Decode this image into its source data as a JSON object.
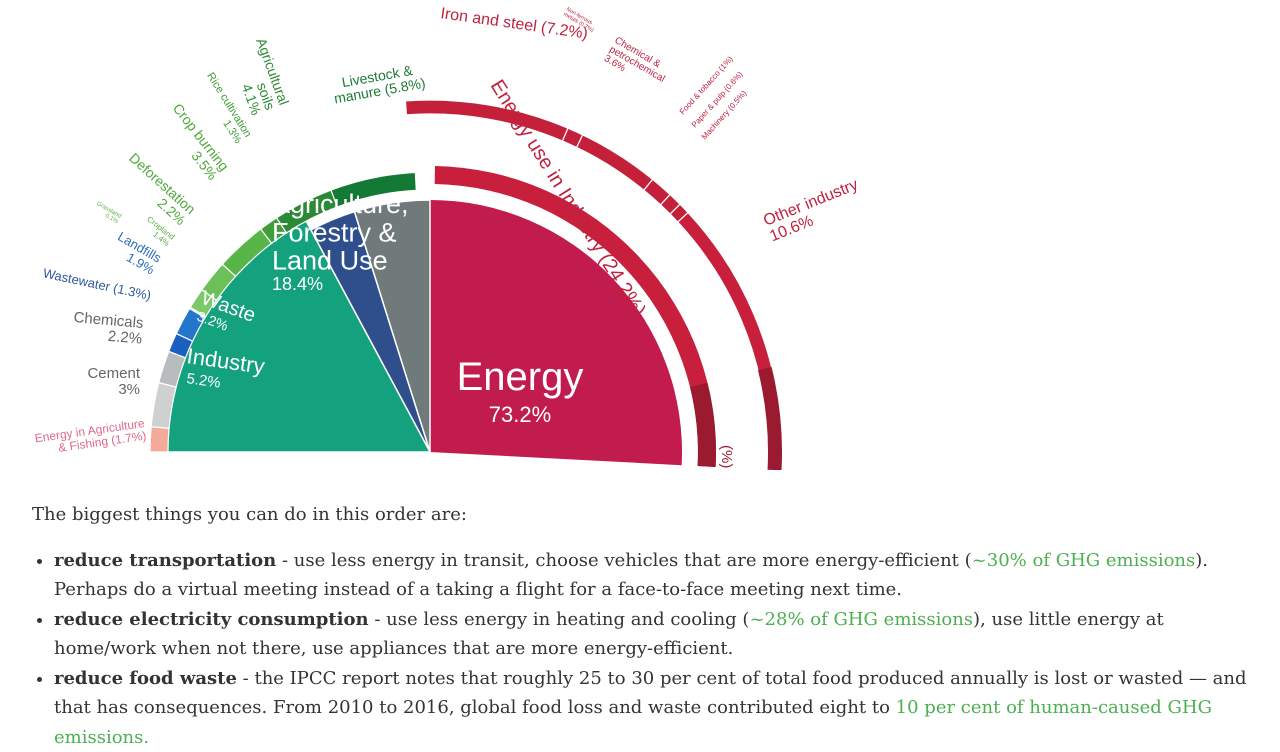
{
  "chart_data": {
    "type": "pie",
    "inner": [
      {
        "label": "Energy",
        "value": 73.2,
        "display": "73.2%",
        "color": "#c21c4e"
      },
      {
        "label": "Industry",
        "value": 5.2,
        "display": "5.2%",
        "color": "#717a7a"
      },
      {
        "label": "Waste",
        "value": 3.2,
        "display": "3.2%",
        "color": "#2e4f8c"
      },
      {
        "label": "Agriculture, Forestry & Land Use",
        "lines": [
          "Agriculture,",
          "Forestry &",
          "Land Use"
        ],
        "value": 18.4,
        "display": "18.4%",
        "color": "#14a17e"
      }
    ],
    "outer": [
      {
        "label": "Energy in Agriculture & Fishing",
        "value": 1.7,
        "display": "(1.7%)",
        "color": "#f3aa9a",
        "text": "#e06a88"
      },
      {
        "label": "Cement",
        "value": 3,
        "display": "3%",
        "color": "#cfd1d1",
        "text": "#666666"
      },
      {
        "label": "Chemicals",
        "value": 2.2,
        "display": "2.2%",
        "color": "#b9bcbc",
        "text": "#666666"
      },
      {
        "label": "Wastewater",
        "value": 1.3,
        "display": "(1.3%)",
        "color": "#1b5fbf",
        "text": "#2d5aa0"
      },
      {
        "label": "Landfills",
        "value": 1.9,
        "display": "1.9%",
        "color": "#2277cc",
        "text": "#2d6fc0"
      },
      {
        "label": "Grassland",
        "value": 0.1,
        "display": "0.1%",
        "color": "#8fd07e",
        "text": "#5caf4a"
      },
      {
        "label": "Cropland",
        "value": 1.4,
        "display": "1.4%",
        "color": "#7cc96c",
        "text": "#5caf4a"
      },
      {
        "label": "Deforestation",
        "value": 2.2,
        "display": "2.2%",
        "color": "#6cc05a",
        "text": "#4fa83c"
      },
      {
        "label": "Crop burning",
        "value": 3.5,
        "display": "3.5%",
        "color": "#58b548",
        "text": "#4fa83c"
      },
      {
        "label": "Rice cultivation",
        "value": 1.3,
        "display": "1.3%",
        "color": "#3f9e3a",
        "text": "#3f9e3a"
      },
      {
        "label": "Agricultural soils",
        "value": 4.1,
        "display": "4.1%",
        "color": "#2a8a36",
        "text": "#2f8a35"
      },
      {
        "label": "Livestock & manure",
        "value": 5.8,
        "display": "(5.8%)",
        "color": "#127a34",
        "text": "#1f7a34"
      },
      {
        "label": "Energy use in Industry",
        "value": 24.2,
        "display": "(24.2%)",
        "color": "#c8203c",
        "text": "#c0223e"
      }
    ],
    "industry_subsectors": [
      {
        "label": "Iron and steel",
        "value": 7.2,
        "display": "(7.2%)"
      },
      {
        "label": "Non-ferrous metals",
        "value": 0.7,
        "display": "(0.7%)"
      },
      {
        "label": "Chemical & petrochemical",
        "value": 3.6,
        "display": "3.6%"
      },
      {
        "label": "Food & tobacco",
        "value": 1,
        "display": "(1%)"
      },
      {
        "label": "Paper & pulp",
        "value": 0.6,
        "display": "(0.6%)"
      },
      {
        "label": "Machinery",
        "value": 0.5,
        "display": "(0.5%)"
      },
      {
        "label": "Other industry",
        "value": 10.6,
        "display": "10.6%"
      }
    ],
    "cutoff_label": "(%)"
  },
  "article": {
    "intro": "The biggest things you can do in this order are:",
    "items": [
      {
        "bold": "reduce transportation",
        "text1": " - use less energy in transit, choose vehicles that are more energy-efficient (",
        "link": "~30% of GHG emissions",
        "text2": "). Perhaps do a virtual meeting instead of a taking a flight for a face-to-face meeting next time."
      },
      {
        "bold": "reduce electricity consumption",
        "text1": " - use less energy in heating and cooling (",
        "link": "~28% of GHG emissions",
        "text2": "), use little energy at home/work when not there, use appliances that are more energy-efficient."
      },
      {
        "bold": "reduce food waste",
        "text1": " - the IPCC report notes that roughly 25 to 30 per cent of total food produced annually is lost or wasted — and that has consequences. From 2010 to 2016, global food loss and waste contributed eight to ",
        "link": "10 per cent of human-caused GHG emissions.",
        "text2": ""
      }
    ],
    "link_color": "#4caf50"
  }
}
